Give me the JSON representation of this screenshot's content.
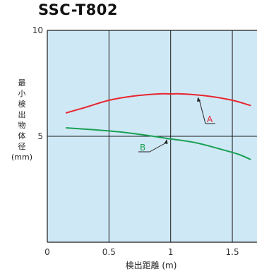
{
  "chart_data": {
    "type": "line",
    "title": "SSC-T802",
    "ylabel": "最小検出物体径",
    "ylabel_unit": "(mm)",
    "xlabel": "検出距離 (m)",
    "xlim": [
      0,
      1.7
    ],
    "ylim": [
      0,
      10
    ],
    "x_ticks": [
      {
        "value": 0,
        "label": "0"
      },
      {
        "value": 0.5,
        "label": "0.5"
      },
      {
        "value": 1,
        "label": "1"
      },
      {
        "value": 1.5,
        "label": "1.5"
      }
    ],
    "y_ticks": [
      {
        "value": 5,
        "label": "5"
      },
      {
        "value": 10,
        "label": "10"
      }
    ],
    "grid": true,
    "background": "#cfe8f6",
    "series": [
      {
        "name": "A",
        "color": "#e8262f",
        "x": [
          0.15,
          0.3,
          0.5,
          0.7,
          0.9,
          1.0,
          1.1,
          1.3,
          1.5,
          1.65
        ],
        "y": [
          6.1,
          6.35,
          6.7,
          6.9,
          7.0,
          7.0,
          7.0,
          6.9,
          6.7,
          6.45
        ]
      },
      {
        "name": "B",
        "color": "#1aa153",
        "x": [
          0.15,
          0.4,
          0.6,
          0.8,
          0.97,
          1.2,
          1.4,
          1.55,
          1.65
        ],
        "y": [
          5.4,
          5.3,
          5.2,
          5.05,
          4.9,
          4.7,
          4.4,
          4.15,
          3.9
        ]
      }
    ]
  }
}
